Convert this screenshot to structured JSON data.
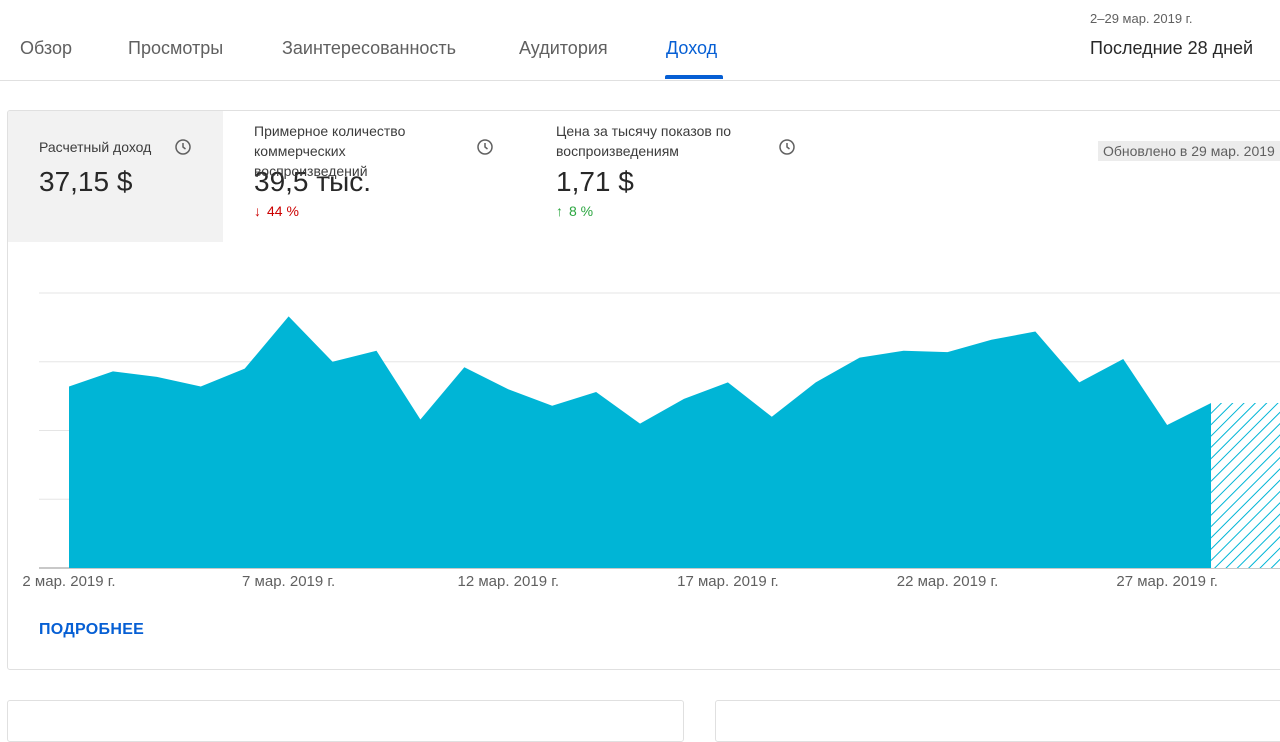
{
  "tabs": [
    {
      "label": "Обзор"
    },
    {
      "label": "Просмотры"
    },
    {
      "label": "Заинтересованность"
    },
    {
      "label": "Аудитория"
    },
    {
      "label": "Доход"
    }
  ],
  "active_tab": "Доход",
  "date": {
    "range": "2–29 мар. 2019 г.",
    "period": "Последние 28 дней"
  },
  "metrics": [
    {
      "label": "Расчетный доход",
      "value": "37,15 $",
      "icon": "clock-icon"
    },
    {
      "label": "Примерное количество коммерческих воспроизведений",
      "value": "39,5 тыс.",
      "delta": "44 %",
      "direction": "down",
      "icon": "clock-icon"
    },
    {
      "label": "Цена за тысячу показов по воспроизведениям",
      "value": "1,71 $",
      "delta": "8 %",
      "direction": "up",
      "icon": "clock-icon"
    }
  ],
  "updated": "Обновлено в 29 мар. 2019",
  "more_link": "ПОДРОБНЕЕ",
  "colors": {
    "accent": "#065fd4",
    "area": "#00b5d6",
    "down": "#cc0000",
    "up": "#2ba640"
  },
  "chart_data": {
    "type": "area",
    "x": [
      "2 мар. 2019 г.",
      "3 мар. 2019 г.",
      "4 мар. 2019 г.",
      "5 мар. 2019 г.",
      "6 мар. 2019 г.",
      "7 мар. 2019 г.",
      "8 мар. 2019 г.",
      "9 мар. 2019 г.",
      "10 мар. 2019 г.",
      "11 мар. 2019 г.",
      "12 мар. 2019 г.",
      "13 мар. 2019 г.",
      "14 мар. 2019 г.",
      "15 мар. 2019 г.",
      "16 мар. 2019 г.",
      "17 мар. 2019 г.",
      "18 мар. 2019 г.",
      "19 мар. 2019 г.",
      "20 мар. 2019 г.",
      "21 мар. 2019 г.",
      "22 мар. 2019 г.",
      "23 мар. 2019 г.",
      "24 мар. 2019 г.",
      "25 мар. 2019 г.",
      "26 мар. 2019 г.",
      "27 мар. 2019 г.",
      "28 мар. 2019 г.",
      "29 мар. 2019 г."
    ],
    "values": [
      1.32,
      1.43,
      1.39,
      1.32,
      1.45,
      1.83,
      1.5,
      1.58,
      1.08,
      1.46,
      1.3,
      1.18,
      1.28,
      1.05,
      1.23,
      1.35,
      1.1,
      1.35,
      1.53,
      1.58,
      1.57,
      1.66,
      1.72,
      1.35,
      1.52,
      1.04,
      1.2,
      1.2
    ],
    "ticks": [
      "2 мар. 2019 г.",
      "7 мар. 2019 г.",
      "12 мар. 2019 г.",
      "17 мар. 2019 г.",
      "22 мар. 2019 г.",
      "27 мар. 2019 г."
    ],
    "ylim": [
      0,
      2
    ],
    "grid": true,
    "incomplete_last_point": true
  }
}
